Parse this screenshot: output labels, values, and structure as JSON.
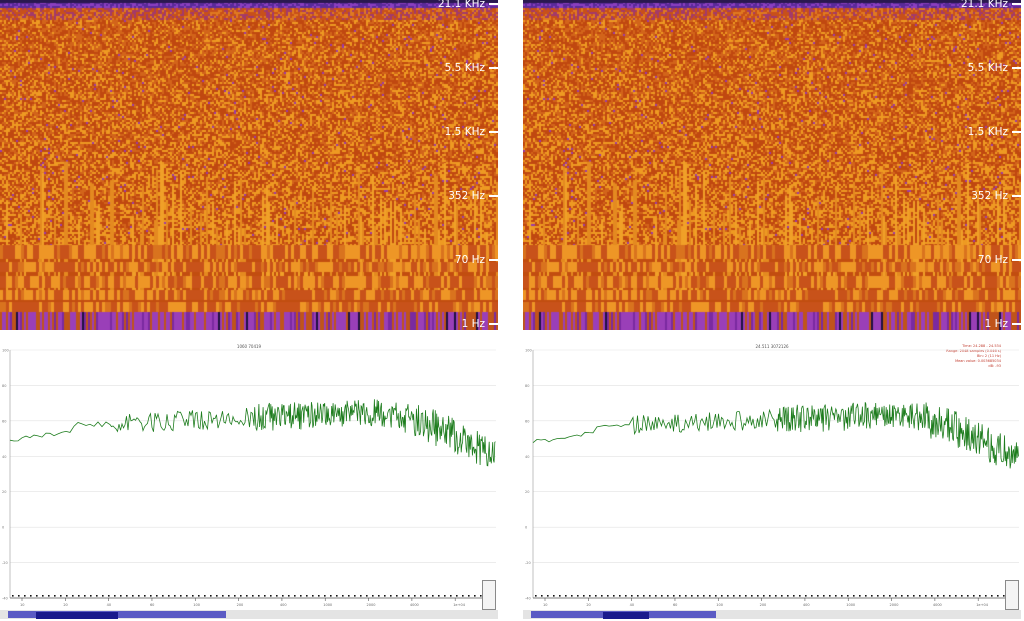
{
  "spectrogram": {
    "freq_labels": [
      "21.1 KHz",
      "5.5 KHz",
      "1.5 KHz",
      "352 Hz",
      "70 Hz",
      "1 Hz"
    ],
    "colors": {
      "background": "#c24d10",
      "bright": "#ee9a22",
      "low": "#8a2fb0",
      "top": "#3a1f60"
    }
  },
  "panels": [
    {
      "title": "1060  70419",
      "info": []
    },
    {
      "title": "24.511  3072126",
      "info": [
        "Time: 24.288 - 24.534",
        "Range: 2048 samples (0.046 s)",
        "Bin: 2 (11 Hz)",
        "Mean value: 0.003685034",
        "dB: -93"
      ]
    }
  ],
  "ticks": {
    "y": [
      "100",
      "80",
      "60",
      "40",
      "20",
      "0",
      "-20",
      "-40"
    ],
    "x_left": [
      "10",
      "20",
      "40",
      "60",
      "100",
      "200",
      "400",
      "1000",
      "2000",
      "4000",
      "1e+04"
    ],
    "x_right": [
      "10",
      "20",
      "40",
      "60",
      "100",
      "200",
      "400",
      "1000",
      "2000",
      "4000",
      "1e+04"
    ]
  },
  "line_color": "#1e7d1e"
}
